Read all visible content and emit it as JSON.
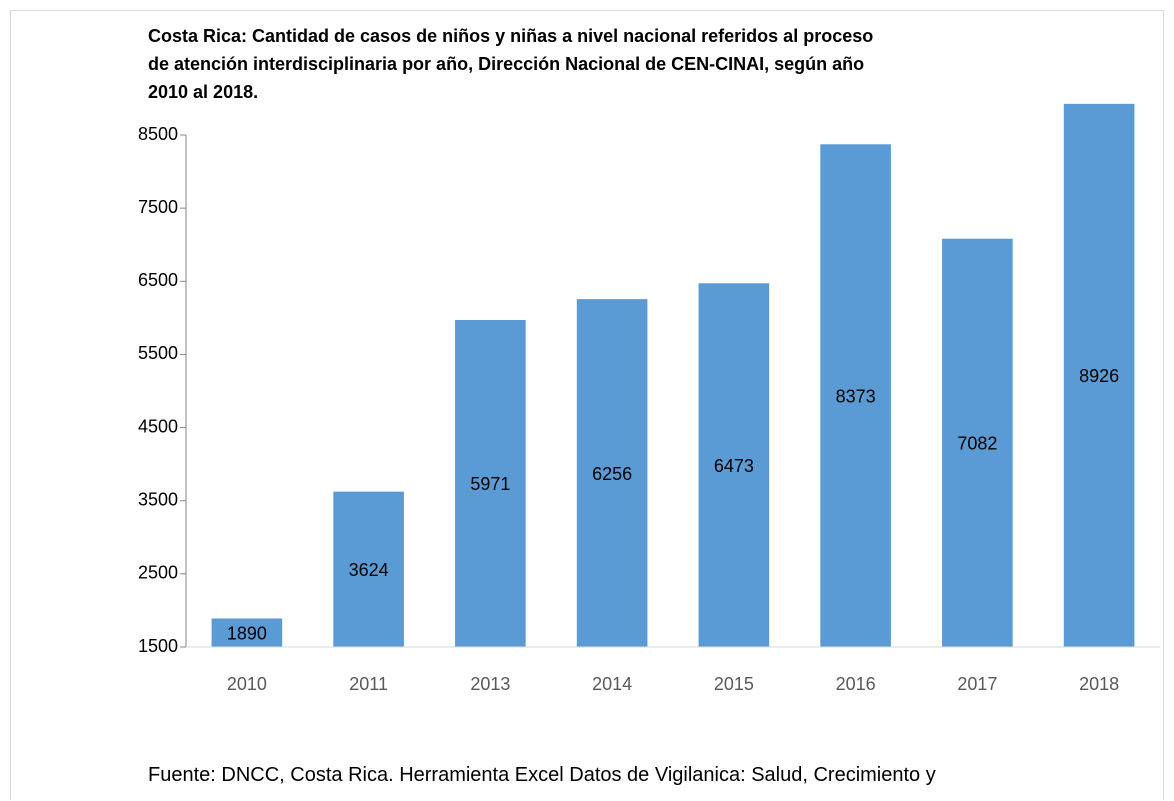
{
  "chart_data": {
    "type": "bar",
    "title": "Costa Rica: Cantidad  de casos de niños y niñas a nivel nacional referidos al proceso de atención interdisciplinaria por año, Dirección Nacional de CEN-CINAI, según año 2010 al 2018.",
    "categories": [
      "2010",
      "2011",
      "2013",
      "2014",
      "2015",
      "2016",
      "2017",
      "2018"
    ],
    "values": [
      1890,
      3624,
      5971,
      6256,
      6473,
      8373,
      7082,
      8926
    ],
    "color": "#5b9bd5",
    "ylim": [
      1500,
      8500
    ],
    "yticks": [
      1500,
      2500,
      3500,
      4500,
      5500,
      6500,
      7500,
      8500
    ],
    "source": "Fuente: DNCC, Costa Rica. Herramienta Excel Datos de Vigilanica: Salud, Crecimiento y"
  }
}
